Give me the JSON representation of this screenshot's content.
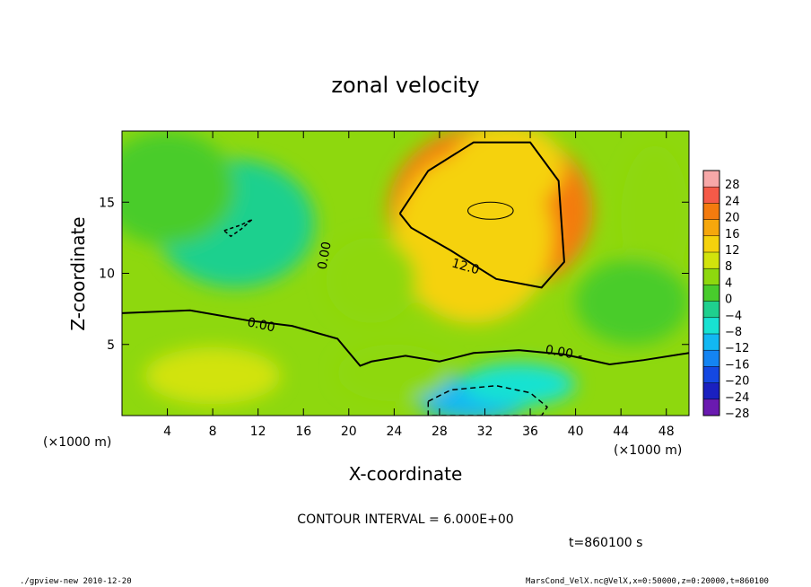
{
  "chart_data": {
    "type": "heatmap",
    "title": "zonal velocity",
    "xlabel": "X-coordinate",
    "ylabel": "Z-coordinate",
    "x_unit_label": "(×1000 m)",
    "x_unit_label_right": "(×1000 m)",
    "xlim": [
      0,
      50
    ],
    "ylim": [
      0,
      20
    ],
    "x_ticks": [
      4,
      8,
      12,
      16,
      20,
      24,
      28,
      32,
      36,
      40,
      44,
      48
    ],
    "y_ticks": [
      5,
      10,
      15
    ],
    "contour_interval_text": "CONTOUR INTERVAL = 6.000E+00",
    "time_text": "t=860100 s",
    "contour_labels": [
      {
        "text": "0.00",
        "x": 18.2,
        "z": 11.2,
        "rotate": -80
      },
      {
        "text": "0.00",
        "x": 12.2,
        "z": 6.1,
        "rotate": 12
      },
      {
        "text": "12.0",
        "x": 30.2,
        "z": 10.2,
        "rotate": 16
      },
      {
        "text": "0.00",
        "x": 38.5,
        "z": 4.2,
        "rotate": 10
      },
      {
        "text": "-",
        "x": 40.4,
        "z": 3.9,
        "rotate": 0
      }
    ],
    "colorbar": {
      "levels": [
        28,
        24,
        20,
        16,
        12,
        8,
        4,
        0,
        -4,
        -8,
        -12,
        -16,
        -20,
        -24,
        -28
      ],
      "labels": [
        "28",
        "24",
        "20",
        "16",
        "12",
        "8",
        "4",
        "0",
        "−4",
        "−8",
        "−12",
        "−16",
        "−20",
        "−24",
        "−28"
      ],
      "colors": [
        "#f7a8a8",
        "#f55a48",
        "#f47b0e",
        "#f6a70c",
        "#f5d20c",
        "#d2e30c",
        "#8ed80e",
        "#48cc2c",
        "#1fd08e",
        "#18e2d2",
        "#12b8f2",
        "#1484f2",
        "#1448e2",
        "#1a20c0",
        "#6a1ab0"
      ]
    },
    "field_blobs": [
      {
        "x": 32.5,
        "z": 14.4,
        "r": [
          9,
          6
        ],
        "v": 18
      },
      {
        "x": 31,
        "z": 12.5,
        "r": [
          7,
          6
        ],
        "v": 10
      },
      {
        "x": 34,
        "z": 17.5,
        "r": [
          5,
          3
        ],
        "v": 10
      },
      {
        "x": 10,
        "z": 13.5,
        "r": [
          7,
          4.5
        ],
        "v": -6
      },
      {
        "x": 4,
        "z": 16,
        "r": [
          6,
          4
        ],
        "v": -3
      },
      {
        "x": 31,
        "z": 1.2,
        "r": [
          5,
          1.6
        ],
        "v": -13
      },
      {
        "x": 35,
        "z": 2.2,
        "r": [
          5,
          1.5
        ],
        "v": -8
      },
      {
        "x": 8,
        "z": 2.8,
        "r": [
          6,
          2
        ],
        "v": 6
      },
      {
        "x": 22,
        "z": 9.5,
        "r": [
          4,
          3
        ],
        "v": 3
      },
      {
        "x": 47,
        "z": 14,
        "r": [
          3,
          5
        ],
        "v": 1
      },
      {
        "x": 45,
        "z": 8,
        "r": [
          5,
          3
        ],
        "v": -1
      },
      {
        "x": 24,
        "z": 3,
        "r": [
          5,
          2
        ],
        "v": 1
      }
    ]
  },
  "footer": {
    "left": "./gpview-new  2010-12-20",
    "right": "MarsCond_VelX.nc@VelX,x=0:50000,z=0:20000,t=860100"
  }
}
